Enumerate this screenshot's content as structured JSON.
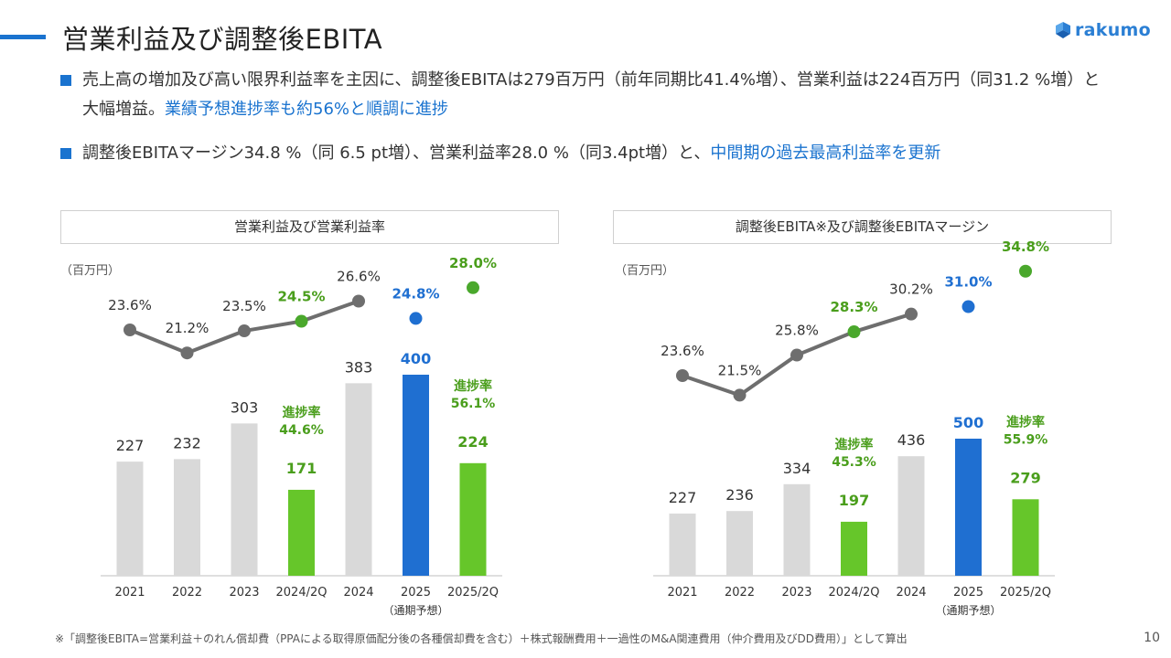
{
  "header": {
    "title": "営業利益及び調整後EBITA",
    "logo_text": "rakumo"
  },
  "bullets": [
    {
      "text": "売上高の増加及び高い限界利益率を主因に、調整後EBITAは279百万円（前年同期比41.4%増）、営業利益は224百万円（同31.2 %増）と大幅増益。",
      "highlight": "業績予想進捗率も約56%と順調に進捗"
    },
    {
      "text": "調整後EBITAマージン34.8 %（同 6.5 pt増）、営業利益率28.0 %（同3.4pt増）と、",
      "highlight": "中間期の過去最高利益率を更新"
    }
  ],
  "colors": {
    "accent": "#1a73cf",
    "grey_bar": "#d9d9d9",
    "blue_bar": "#1f6fd1",
    "green_bar": "#66c62a",
    "green_text": "#4a9e1c",
    "line": "#6e6e6e"
  },
  "chart_data": [
    {
      "type": "bar",
      "title": "営業利益及び営業利益率",
      "unit_label": "（百万円）",
      "categories": [
        "2021",
        "2022",
        "2023",
        "2024/2Q",
        "2024",
        "2025",
        "2025/2Q"
      ],
      "category_sublabels": [
        "",
        "",
        "",
        "",
        "",
        "（通期予想）",
        ""
      ],
      "values": [
        227,
        232,
        303,
        171,
        383,
        400,
        224
      ],
      "value_labels": [
        "227",
        "232",
        "303",
        "171",
        "383",
        "400",
        "224"
      ],
      "bar_kinds": [
        "actual",
        "actual",
        "actual",
        "half",
        "actual",
        "forecast",
        "half"
      ],
      "rates": [
        23.6,
        21.2,
        23.5,
        24.5,
        26.6,
        24.8,
        28.0
      ],
      "rate_labels": [
        "23.6%",
        "21.2%",
        "23.5%",
        "24.5%",
        "26.6%",
        "24.8%",
        "28.0%"
      ],
      "line_indices": [
        0,
        1,
        2,
        3,
        4
      ],
      "progress": [
        {
          "index": 3,
          "label": "進捗率",
          "value": "44.6%"
        },
        {
          "index": 6,
          "label": "進捗率",
          "value": "56.1%"
        }
      ]
    },
    {
      "type": "bar",
      "title": "調整後EBITA※及び調整後EBITAマージン",
      "unit_label": "（百万円）",
      "categories": [
        "2021",
        "2022",
        "2023",
        "2024/2Q",
        "2024",
        "2025",
        "2025/2Q"
      ],
      "category_sublabels": [
        "",
        "",
        "",
        "",
        "",
        "（通期予想）",
        ""
      ],
      "values": [
        227,
        236,
        334,
        197,
        436,
        500,
        279
      ],
      "value_labels": [
        "227",
        "236",
        "334",
        "197",
        "436",
        "500",
        "279"
      ],
      "bar_kinds": [
        "actual",
        "actual",
        "actual",
        "half",
        "actual",
        "forecast",
        "half"
      ],
      "rates": [
        23.6,
        21.5,
        25.8,
        28.3,
        30.2,
        31.0,
        34.8
      ],
      "rate_labels": [
        "23.6%",
        "21.5%",
        "25.8%",
        "28.3%",
        "30.2%",
        "31.0%",
        "34.8%"
      ],
      "line_indices": [
        0,
        1,
        2,
        3,
        4
      ],
      "progress": [
        {
          "index": 3,
          "label": "進捗率",
          "value": "45.3%"
        },
        {
          "index": 6,
          "label": "進捗率",
          "value": "55.9%"
        }
      ]
    }
  ],
  "footnote": "※「調整後EBITA=営業利益＋のれん償却費（PPAによる取得原価配分後の各種償却費を含む）＋株式報酬費用＋一過性のM&A関連費用（仲介費用及びDD費用）」として算出",
  "page_number": "10"
}
